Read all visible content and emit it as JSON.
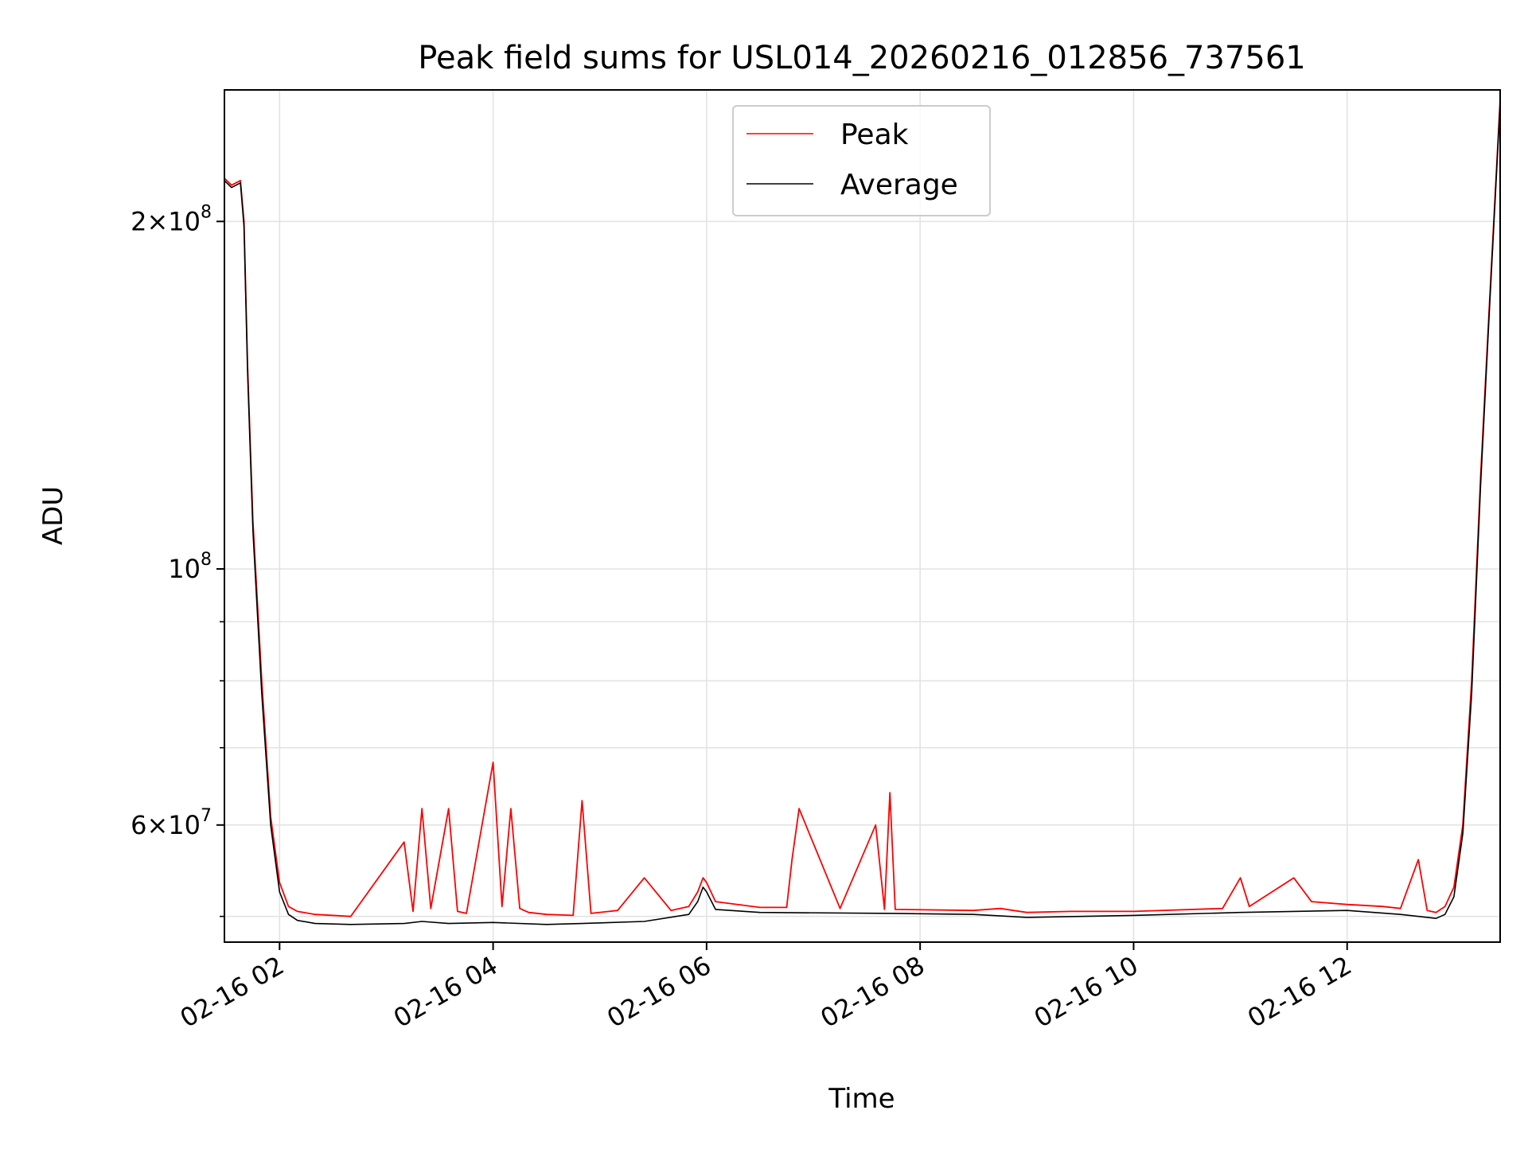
{
  "chart_data": {
    "type": "line",
    "title": "Peak field sums for USL014_20260216_012856_737561",
    "xlabel": "Time",
    "ylabel": "ADU",
    "y_scale": "log",
    "ylim": [
      47500000,
      260000000
    ],
    "xlim": [
      "2026-02-16 01:29",
      "2026-02-16 13:26"
    ],
    "x_ticks": [
      {
        "label": "02-16 02",
        "value": "2026-02-16 02:00"
      },
      {
        "label": "02-16 04",
        "value": "2026-02-16 04:00"
      },
      {
        "label": "02-16 06",
        "value": "2026-02-16 06:00"
      },
      {
        "label": "02-16 08",
        "value": "2026-02-16 08:00"
      },
      {
        "label": "02-16 10",
        "value": "2026-02-16 10:00"
      },
      {
        "label": "02-16 12",
        "value": "2026-02-16 12:00"
      }
    ],
    "y_ticks": [
      {
        "mantissa": "2",
        "exponent": "8",
        "value": 200000000
      },
      {
        "mantissa": "",
        "exponent": "8",
        "value": 100000000
      },
      {
        "mantissa": "6",
        "exponent": "7",
        "value": 60000000
      }
    ],
    "y_minor_ticks": [
      50000000,
      70000000,
      80000000,
      90000000
    ],
    "grid": true,
    "legend_position": "upper-center",
    "series": [
      {
        "name": "Peak",
        "color": "#ff0000",
        "x": [
          "2026-02-16 01:29",
          "2026-02-16 01:33",
          "2026-02-16 01:38",
          "2026-02-16 01:40",
          "2026-02-16 01:42",
          "2026-02-16 01:45",
          "2026-02-16 01:50",
          "2026-02-16 01:55",
          "2026-02-16 02:00",
          "2026-02-16 02:05",
          "2026-02-16 02:10",
          "2026-02-16 02:20",
          "2026-02-16 02:40",
          "2026-02-16 03:10",
          "2026-02-16 03:15",
          "2026-02-16 03:20",
          "2026-02-16 03:25",
          "2026-02-16 03:35",
          "2026-02-16 03:40",
          "2026-02-16 03:45",
          "2026-02-16 04:00",
          "2026-02-16 04:05",
          "2026-02-16 04:10",
          "2026-02-16 04:15",
          "2026-02-16 04:20",
          "2026-02-16 04:30",
          "2026-02-16 04:45",
          "2026-02-16 04:50",
          "2026-02-16 04:55",
          "2026-02-16 05:10",
          "2026-02-16 05:25",
          "2026-02-16 05:40",
          "2026-02-16 05:50",
          "2026-02-16 05:55",
          "2026-02-16 05:58",
          "2026-02-16 06:00",
          "2026-02-16 06:05",
          "2026-02-16 06:30",
          "2026-02-16 06:45",
          "2026-02-16 06:48",
          "2026-02-16 06:52",
          "2026-02-16 07:15",
          "2026-02-16 07:35",
          "2026-02-16 07:40",
          "2026-02-16 07:43",
          "2026-02-16 07:46",
          "2026-02-16 08:30",
          "2026-02-16 08:45",
          "2026-02-16 09:00",
          "2026-02-16 09:25",
          "2026-02-16 10:00",
          "2026-02-16 10:50",
          "2026-02-16 11:00",
          "2026-02-16 11:05",
          "2026-02-16 11:30",
          "2026-02-16 11:40",
          "2026-02-16 12:00",
          "2026-02-16 12:20",
          "2026-02-16 12:30",
          "2026-02-16 12:40",
          "2026-02-16 12:45",
          "2026-02-16 12:50",
          "2026-02-16 12:55",
          "2026-02-16 13:00",
          "2026-02-16 13:05",
          "2026-02-16 13:10",
          "2026-02-16 13:15",
          "2026-02-16 13:20",
          "2026-02-16 13:26"
        ],
        "values": [
          218000000,
          215000000,
          217000000,
          200000000,
          150000000,
          110000000,
          80000000,
          61000000,
          53500000,
          51000000,
          50500000,
          50200000,
          50000000,
          58000000,
          50500000,
          62000000,
          50800000,
          62000000,
          50500000,
          50300000,
          68000000,
          51000000,
          62000000,
          50800000,
          50400000,
          50200000,
          50100000,
          63000000,
          50300000,
          50600000,
          54000000,
          50600000,
          51000000,
          52500000,
          54000000,
          53500000,
          51500000,
          50900000,
          50900000,
          56000000,
          62000000,
          50800000,
          60000000,
          50700000,
          64000000,
          50700000,
          50600000,
          50800000,
          50400000,
          50500000,
          50500000,
          50800000,
          54000000,
          51000000,
          54000000,
          51500000,
          51200000,
          51000000,
          50800000,
          56000000,
          50600000,
          50400000,
          51000000,
          53000000,
          60000000,
          80000000,
          120000000,
          170000000,
          255000000
        ]
      },
      {
        "name": "Average",
        "color": "#000000",
        "x": [
          "2026-02-16 01:29",
          "2026-02-16 01:33",
          "2026-02-16 01:38",
          "2026-02-16 01:40",
          "2026-02-16 01:42",
          "2026-02-16 01:45",
          "2026-02-16 01:50",
          "2026-02-16 01:55",
          "2026-02-16 02:00",
          "2026-02-16 02:05",
          "2026-02-16 02:10",
          "2026-02-16 02:20",
          "2026-02-16 02:40",
          "2026-02-16 03:10",
          "2026-02-16 03:20",
          "2026-02-16 03:35",
          "2026-02-16 04:00",
          "2026-02-16 04:30",
          "2026-02-16 04:50",
          "2026-02-16 05:25",
          "2026-02-16 05:50",
          "2026-02-16 05:55",
          "2026-02-16 05:58",
          "2026-02-16 06:00",
          "2026-02-16 06:05",
          "2026-02-16 06:30",
          "2026-02-16 07:45",
          "2026-02-16 08:30",
          "2026-02-16 09:00",
          "2026-02-16 10:00",
          "2026-02-16 11:00",
          "2026-02-16 11:30",
          "2026-02-16 12:00",
          "2026-02-16 12:30",
          "2026-02-16 12:50",
          "2026-02-16 12:55",
          "2026-02-16 13:00",
          "2026-02-16 13:05",
          "2026-02-16 13:10",
          "2026-02-16 13:15",
          "2026-02-16 13:20",
          "2026-02-16 13:26"
        ],
        "values": [
          217000000,
          214000000,
          216000000,
          198000000,
          148000000,
          108000000,
          78000000,
          60000000,
          52500000,
          50200000,
          49600000,
          49300000,
          49200000,
          49300000,
          49500000,
          49300000,
          49400000,
          49200000,
          49300000,
          49500000,
          50200000,
          51500000,
          53000000,
          52500000,
          50700000,
          50400000,
          50300000,
          50200000,
          49900000,
          50100000,
          50400000,
          50500000,
          50600000,
          50200000,
          49800000,
          50200000,
          52000000,
          59000000,
          78000000,
          118000000,
          168000000,
          253000000
        ]
      }
    ]
  }
}
